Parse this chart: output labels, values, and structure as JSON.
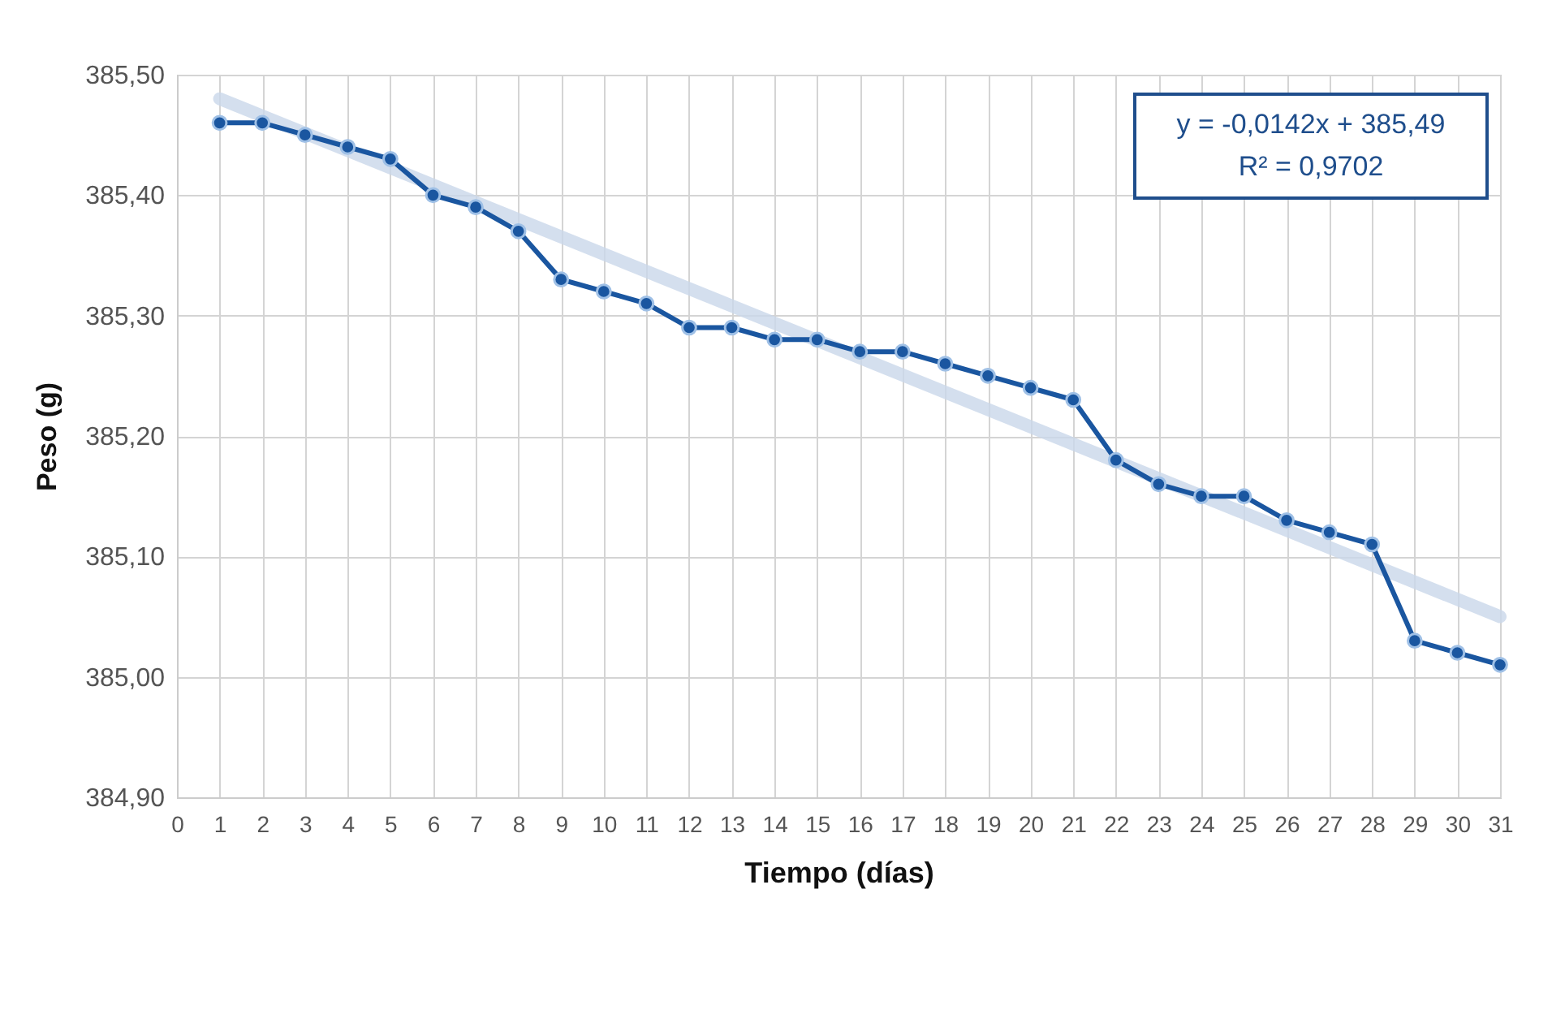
{
  "chart_data": {
    "type": "line",
    "xlabel": "Tiempo (días)",
    "ylabel": "Peso (g)",
    "x": [
      1,
      2,
      3,
      4,
      5,
      6,
      7,
      8,
      9,
      10,
      11,
      12,
      13,
      14,
      15,
      16,
      17,
      18,
      19,
      20,
      21,
      22,
      23,
      24,
      25,
      26,
      27,
      28,
      29,
      30,
      31
    ],
    "series": [
      {
        "type": "line",
        "color": "#c9d7ea",
        "x": [
          1,
          31
        ],
        "values": [
          385.48,
          385.05
        ],
        "marker": "none"
      },
      {
        "type": "line",
        "color": "#1a56a0",
        "values": [
          385.46,
          385.46,
          385.45,
          385.44,
          385.43,
          385.4,
          385.39,
          385.37,
          385.33,
          385.32,
          385.31,
          385.29,
          385.29,
          385.28,
          385.28,
          385.27,
          385.27,
          385.26,
          385.25,
          385.24,
          385.23,
          385.18,
          385.16,
          385.15,
          385.15,
          385.13,
          385.12,
          385.11,
          385.03,
          385.02,
          385.01
        ],
        "marker": "circle"
      }
    ],
    "xlim": [
      0,
      31
    ],
    "xticks": [
      0,
      1,
      2,
      3,
      4,
      5,
      6,
      7,
      8,
      9,
      10,
      11,
      12,
      13,
      14,
      15,
      16,
      17,
      18,
      19,
      20,
      21,
      22,
      23,
      24,
      25,
      26,
      27,
      28,
      29,
      30,
      31
    ],
    "ylim": [
      384.9,
      385.5
    ],
    "yticks": [
      {
        "value": 384.9,
        "label": "384,90"
      },
      {
        "value": 385.0,
        "label": "385,00"
      },
      {
        "value": 385.1,
        "label": "385,10"
      },
      {
        "value": 385.2,
        "label": "385,20"
      },
      {
        "value": 385.3,
        "label": "385,30"
      },
      {
        "value": 385.4,
        "label": "385,40"
      },
      {
        "value": 385.5,
        "label": "385,50"
      }
    ],
    "grid": true,
    "annotations": [
      "y = -0,0142x + 385,49",
      "R² = 0,9702"
    ]
  }
}
